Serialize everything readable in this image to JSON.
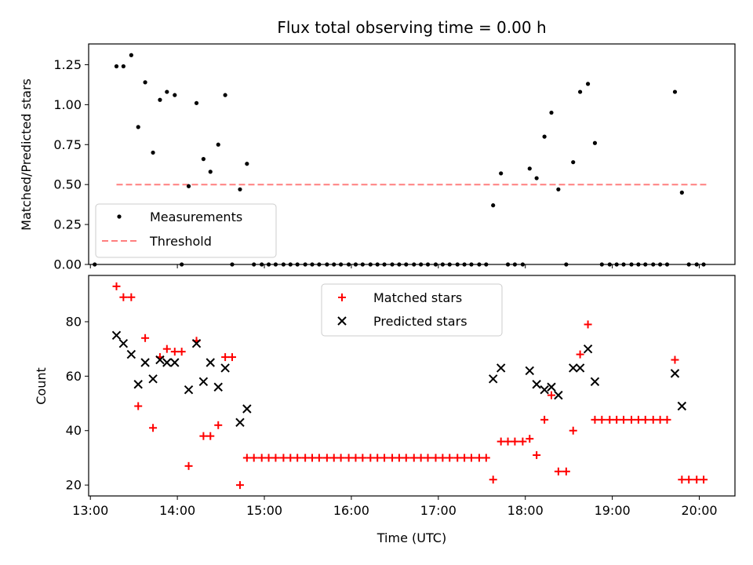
{
  "chart_data": [
    {
      "type": "scatter",
      "title": "Flux total observing time = 0.00 h",
      "xlabel": "",
      "ylabel": "Matched/Predicted stars",
      "xlim": [
        12.98,
        20.41
      ],
      "ylim": [
        0,
        1.38
      ],
      "yticks": [
        0.0,
        0.25,
        0.5,
        0.75,
        1.0,
        1.25
      ],
      "ytick_labels": [
        "0.00",
        "0.25",
        "0.50",
        "0.75",
        "1.00",
        "1.25"
      ],
      "legend_position": "lower-left",
      "series": [
        {
          "name": "Measurements",
          "marker": "dot",
          "color": "#000000",
          "x": [
            13.3,
            13.38,
            13.47,
            13.55,
            13.63,
            13.72,
            13.8,
            13.88,
            13.97,
            14.13,
            14.22,
            14.3,
            14.38,
            14.47,
            14.55,
            14.72,
            14.8,
            13.05,
            14.05,
            14.63,
            14.88,
            14.97,
            15.05,
            15.13,
            15.22,
            15.3,
            15.38,
            15.47,
            15.55,
            15.63,
            15.72,
            15.8,
            15.88,
            15.97,
            16.05,
            16.13,
            16.22,
            16.3,
            16.38,
            16.47,
            16.55,
            16.63,
            16.72,
            16.8,
            16.88,
            16.97,
            17.05,
            17.13,
            17.22,
            17.3,
            17.38,
            17.47,
            17.55,
            17.63,
            17.72,
            17.8,
            17.88,
            17.97,
            18.05,
            18.13,
            18.22,
            18.3,
            18.38,
            18.47,
            18.55,
            18.63,
            18.72,
            18.8,
            18.88,
            18.97,
            19.05,
            19.13,
            19.22,
            19.3,
            19.38,
            19.47,
            19.55,
            19.63,
            19.72,
            19.8,
            19.88,
            19.97,
            20.05
          ],
          "y": [
            1.24,
            1.24,
            1.31,
            0.86,
            1.14,
            0.7,
            1.03,
            1.08,
            1.06,
            0.49,
            1.01,
            0.66,
            0.58,
            0.75,
            1.06,
            0.47,
            0.63,
            0.0,
            0.0,
            0.0,
            0.0,
            0.0,
            0.0,
            0.0,
            0.0,
            0.0,
            0.0,
            0.0,
            0.0,
            0.0,
            0.0,
            0.0,
            0.0,
            0.0,
            0.0,
            0.0,
            0.0,
            0.0,
            0.0,
            0.0,
            0.0,
            0.0,
            0.0,
            0.0,
            0.0,
            0.0,
            0.0,
            0.0,
            0.0,
            0.0,
            0.0,
            0.0,
            0.0,
            0.37,
            0.57,
            0.0,
            0.0,
            0.0,
            0.6,
            0.54,
            0.8,
            0.95,
            0.47,
            0.0,
            0.64,
            1.08,
            1.13,
            0.76,
            0.0,
            0.0,
            0.0,
            0.0,
            0.0,
            0.0,
            0.0,
            0.0,
            0.0,
            0.0,
            1.08,
            0.45,
            0.0,
            0.0,
            0.0
          ]
        },
        {
          "name": "Threshold",
          "marker": "dashed-line",
          "color": "#ff7f7f",
          "x": [
            13.3,
            20.08
          ],
          "y": [
            0.5,
            0.5
          ]
        }
      ]
    },
    {
      "type": "scatter",
      "title": "",
      "xlabel": "Time (UTC)",
      "ylabel": "Count",
      "xlim": [
        12.98,
        20.41
      ],
      "ylim": [
        16,
        97
      ],
      "yticks": [
        20,
        40,
        60,
        80
      ],
      "ytick_labels": [
        "20",
        "40",
        "60",
        "80"
      ],
      "xticks": [
        13,
        14,
        15,
        16,
        17,
        18,
        19,
        20
      ],
      "xtick_labels": [
        "13:00",
        "14:00",
        "15:00",
        "16:00",
        "17:00",
        "18:00",
        "19:00",
        "20:00"
      ],
      "legend_position": "upper-center",
      "series": [
        {
          "name": "Matched stars",
          "marker": "plus",
          "color": "#ff0000",
          "x": [
            13.3,
            13.38,
            13.47,
            13.55,
            13.63,
            13.72,
            13.8,
            13.88,
            13.97,
            14.05,
            14.13,
            14.22,
            14.3,
            14.38,
            14.47,
            14.55,
            14.63,
            14.72,
            14.8,
            14.88,
            14.97,
            15.05,
            15.13,
            15.22,
            15.3,
            15.38,
            15.47,
            15.55,
            15.63,
            15.72,
            15.8,
            15.88,
            15.97,
            16.05,
            16.13,
            16.22,
            16.3,
            16.38,
            16.47,
            16.55,
            16.63,
            16.72,
            16.8,
            16.88,
            16.97,
            17.05,
            17.13,
            17.22,
            17.3,
            17.38,
            17.47,
            17.55,
            17.63,
            17.72,
            17.8,
            17.88,
            17.97,
            18.05,
            18.13,
            18.22,
            18.3,
            18.38,
            18.47,
            18.55,
            18.63,
            18.72,
            18.8,
            18.88,
            18.97,
            19.05,
            19.13,
            19.22,
            19.3,
            19.38,
            19.47,
            19.55,
            19.63,
            19.72,
            19.8,
            19.88,
            19.97,
            20.05
          ],
          "y": [
            93,
            89,
            89,
            49,
            74,
            41,
            67,
            70,
            69,
            69,
            27,
            73,
            38,
            38,
            42,
            67,
            67,
            20,
            30,
            30,
            30,
            30,
            30,
            30,
            30,
            30,
            30,
            30,
            30,
            30,
            30,
            30,
            30,
            30,
            30,
            30,
            30,
            30,
            30,
            30,
            30,
            30,
            30,
            30,
            30,
            30,
            30,
            30,
            30,
            30,
            30,
            30,
            22,
            36,
            36,
            36,
            36,
            37,
            31,
            44,
            53,
            25,
            25,
            40,
            68,
            79,
            44,
            44,
            44,
            44,
            44,
            44,
            44,
            44,
            44,
            44,
            44,
            66,
            22,
            22,
            22,
            22
          ]
        },
        {
          "name": "Predicted stars",
          "marker": "x",
          "color": "#000000",
          "x": [
            13.3,
            13.38,
            13.47,
            13.55,
            13.63,
            13.72,
            13.8,
            13.88,
            13.97,
            14.13,
            14.22,
            14.3,
            14.38,
            14.47,
            14.55,
            14.72,
            14.8,
            17.63,
            17.72,
            18.05,
            18.13,
            18.22,
            18.3,
            18.38,
            18.55,
            18.63,
            18.72,
            18.8,
            19.72,
            19.8
          ],
          "y": [
            75,
            72,
            68,
            57,
            65,
            59,
            66,
            65,
            65,
            55,
            72,
            58,
            65,
            56,
            63,
            43,
            48,
            59,
            63,
            62,
            57,
            55,
            56,
            53,
            63,
            63,
            70,
            58,
            61,
            49
          ]
        }
      ]
    }
  ]
}
